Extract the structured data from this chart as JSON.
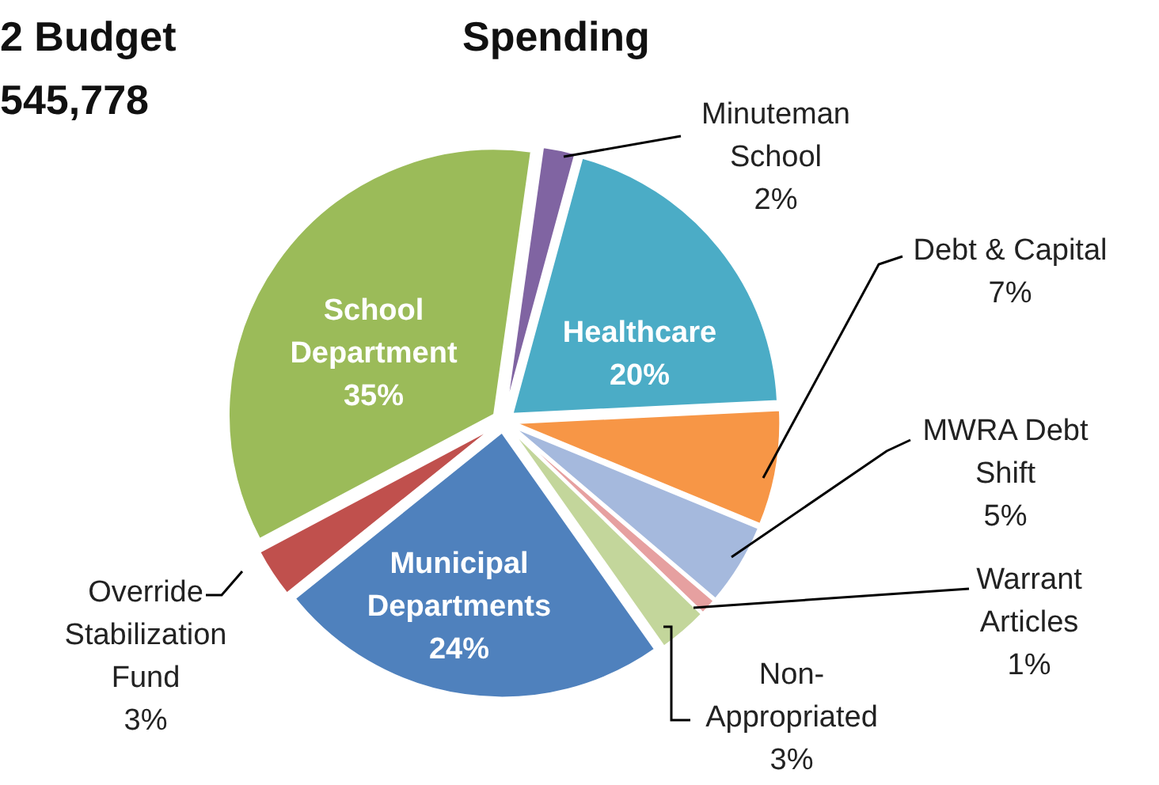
{
  "chart_data": {
    "type": "pie",
    "title": "2 Budget",
    "subtitle": "545,778",
    "annotations": [
      "Spending"
    ],
    "categories": [
      "Minuteman School",
      "Healthcare",
      "Debt & Capital",
      "MWRA Debt Shift",
      "Warrant Articles",
      "Non-Appropriated",
      "Municipal Departments",
      "Override Stabilization Fund",
      "School Department"
    ],
    "values": [
      2,
      20,
      7,
      5,
      1,
      3,
      24,
      3,
      35
    ],
    "value_labels": [
      "2%",
      "20%",
      "7%",
      "5%",
      "1%",
      "3%",
      "24%",
      "3%",
      "35%"
    ],
    "colors": [
      "#8064a2",
      "#4bacc6",
      "#f79646",
      "#a5b9dd",
      "#e6a0a0",
      "#c3d69b",
      "#4f81bd",
      "#c0504d",
      "#9bbb59"
    ]
  }
}
